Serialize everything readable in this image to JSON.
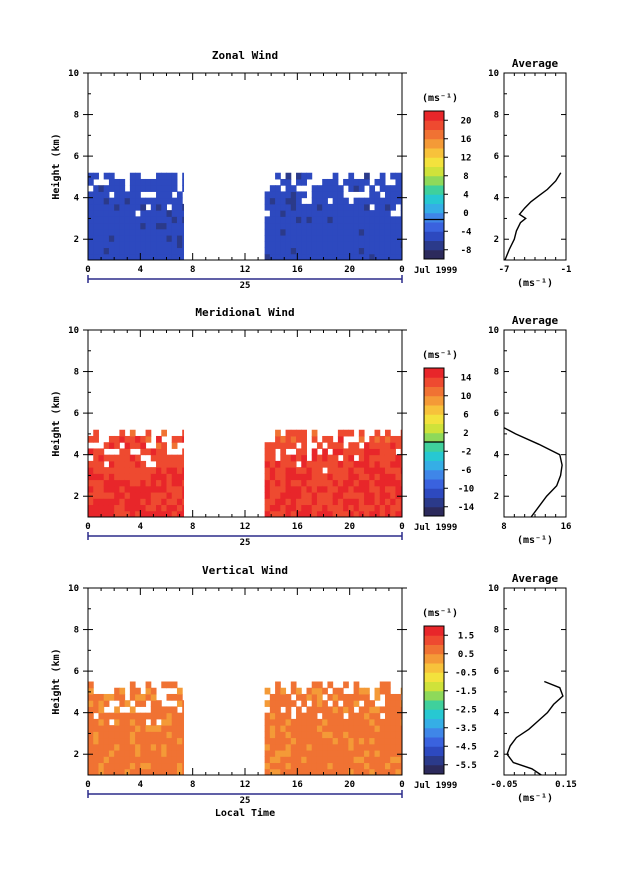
{
  "chart_data": [
    {
      "type": "heatmap",
      "title": "Zonal Wind",
      "xlabel": "",
      "ylabel": "Height (km)",
      "xlim": [
        0,
        24
      ],
      "ylim": [
        1,
        10
      ],
      "xticks": [
        "0",
        "4",
        "8",
        "12",
        "16",
        "20",
        "0"
      ],
      "yticks": [
        "2",
        "4",
        "6",
        "8",
        "10"
      ],
      "date_day": "25",
      "date_text": "Jul 1999",
      "units": "(ms⁻¹)",
      "colorbar": {
        "min": -8,
        "max": 22,
        "ticks": [
          "20",
          "16",
          "12",
          "8",
          "4",
          "0",
          "-4",
          "-8"
        ],
        "marker": 0
      },
      "data_spans": [
        [
          0,
          7.3
        ],
        [
          13.5,
          24
        ]
      ],
      "data_top_km": 5.2,
      "color_low": -6,
      "color_high": -3,
      "average": {
        "title": "Average",
        "xlabel": "(ms⁻¹)",
        "xlim": [
          -7,
          -1
        ],
        "xticks": [
          "-7",
          "-1"
        ],
        "yticks": [
          "2",
          "4",
          "6",
          "8",
          "10"
        ],
        "height": [
          1.0,
          1.5,
          2.0,
          2.4,
          2.8,
          3.0,
          3.2,
          3.5,
          3.8,
          4.1,
          4.4,
          4.8,
          5.2
        ],
        "value": [
          -6.9,
          -6.5,
          -6.0,
          -5.8,
          -5.4,
          -4.9,
          -5.5,
          -5.0,
          -4.4,
          -3.6,
          -2.8,
          -2.0,
          -1.5
        ]
      }
    },
    {
      "type": "heatmap",
      "title": "Meridional Wind",
      "xlabel": "",
      "ylabel": "Height (km)",
      "xlim": [
        0,
        24
      ],
      "ylim": [
        1,
        10
      ],
      "xticks": [
        "0",
        "4",
        "8",
        "12",
        "16",
        "20",
        "0"
      ],
      "yticks": [
        "2",
        "4",
        "6",
        "8",
        "10"
      ],
      "date_day": "25",
      "date_text": "Jul 1999",
      "units": "(ms⁻¹)",
      "colorbar": {
        "min": -16,
        "max": 16,
        "ticks": [
          "14",
          "10",
          "6",
          "2",
          "-2",
          "-6",
          "-10",
          "-14"
        ],
        "marker": 0
      },
      "data_spans": [
        [
          0,
          7.3
        ],
        [
          13.5,
          24
        ]
      ],
      "data_top_km": 5.2,
      "color_low": 9,
      "color_high": 16,
      "average": {
        "title": "Average",
        "xlabel": "(ms⁻¹)",
        "xlim": [
          8,
          16
        ],
        "xticks": [
          "8",
          "16"
        ],
        "yticks": [
          "2",
          "4",
          "6",
          "8",
          "10"
        ],
        "height": [
          1.0,
          1.5,
          2.0,
          2.5,
          3.0,
          3.5,
          4.0,
          4.5,
          5.0,
          5.3
        ],
        "value": [
          11.5,
          12.5,
          13.5,
          14.8,
          15.3,
          15.5,
          15.2,
          12.5,
          9.5,
          8.0
        ]
      }
    },
    {
      "type": "heatmap",
      "title": "Vertical Wind",
      "xlabel": "Local Time",
      "ylabel": "Height (km)",
      "xlim": [
        0,
        24
      ],
      "ylim": [
        1,
        10
      ],
      "xticks": [
        "0",
        "4",
        "8",
        "12",
        "16",
        "20",
        "0"
      ],
      "yticks": [
        "2",
        "4",
        "6",
        "8",
        "10"
      ],
      "date_day": "25",
      "date_text": "Jul 1999",
      "units": "(ms⁻¹)",
      "colorbar": {
        "min": -7,
        "max": 2.5,
        "ticks": [
          "1.5",
          "0.5",
          "-0.5",
          "-1.5",
          "-2.5",
          "-3.5",
          "-4.5",
          "-5.5"
        ],
        "marker": null
      },
      "data_spans": [
        [
          0,
          7.3
        ],
        [
          13.5,
          24
        ]
      ],
      "data_top_km": 5.4,
      "color_low": -0.3,
      "color_high": 1.3,
      "average": {
        "title": "Average",
        "xlabel": "(ms⁻¹)",
        "xlim": [
          -0.05,
          0.15
        ],
        "xticks": [
          "-0.05",
          "0.15"
        ],
        "yticks": [
          "2",
          "4",
          "6",
          "8",
          "10"
        ],
        "height": [
          1.0,
          1.3,
          1.6,
          2.0,
          2.4,
          2.8,
          3.2,
          3.6,
          4.0,
          4.4,
          4.8,
          5.2,
          5.5
        ],
        "value": [
          0.07,
          0.04,
          -0.02,
          -0.04,
          -0.03,
          -0.01,
          0.03,
          0.06,
          0.09,
          0.11,
          0.14,
          0.13,
          0.08
        ]
      }
    }
  ]
}
